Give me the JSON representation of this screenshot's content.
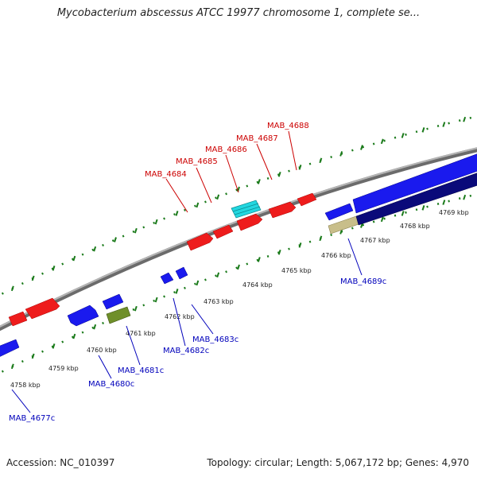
{
  "title": "Mycobacterium abscessus ATCC 19977 chromosome 1, complete se...",
  "footer": {
    "accession": "Accession: NC_010397",
    "summary": "Topology: circular; Length: 5,067,172 bp; Genes: 4,970"
  },
  "colors": {
    "forward_gene": "#ee1c1c",
    "reverse_gene": "#1a1aee",
    "forward_label": "#cc0000",
    "reverse_label": "#0000bb",
    "backbone": "#8a8a8a",
    "ruler_tick": "#1a7a1a",
    "cyan_feature": "#22d7e0",
    "olive_feature": "#6f8f2a",
    "tan_feature": "#c8be8a",
    "navy_feature": "#0a0a7a"
  },
  "kbp_labels": [
    "4758 kbp",
    "4759 kbp",
    "4760 kbp",
    "4761 kbp",
    "4762 kbp",
    "4763 kbp",
    "4764 kbp",
    "4765 kbp",
    "4766 kbp",
    "4767 kbp",
    "4768 kbp",
    "4769 kbp"
  ],
  "forward_genes": [
    "MAB_4684",
    "MAB_4685",
    "MAB_4686",
    "MAB_4687",
    "MAB_4688"
  ],
  "reverse_genes": [
    "MAB_4677c",
    "MAB_4680c",
    "MAB_4681c",
    "MAB_4682c",
    "MAB_4683c",
    "MAB_4689c"
  ]
}
